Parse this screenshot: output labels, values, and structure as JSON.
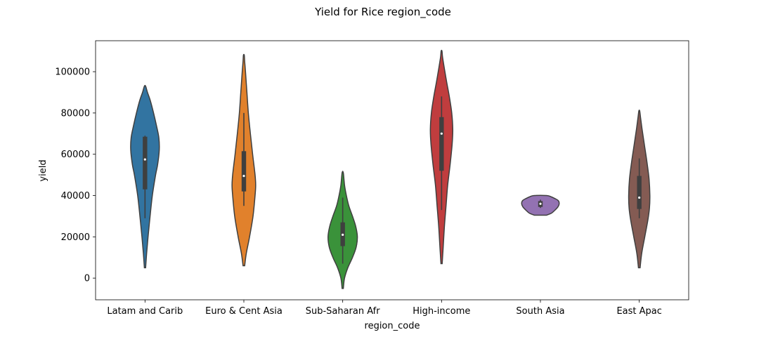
{
  "chart_data": {
    "type": "violin",
    "title": "Yield for Rice region_code",
    "xlabel": "region_code",
    "ylabel": "yield",
    "ylim": [
      -10500,
      115000
    ],
    "yticks": [
      0,
      20000,
      40000,
      60000,
      80000,
      100000
    ],
    "ytick_labels": [
      "0",
      "20000",
      "40000",
      "60000",
      "80000",
      "100000"
    ],
    "grid": false,
    "categories": [
      "Latam and Carib",
      "Euro & Cent Asia",
      "Sub-Saharan Afr",
      "High-income",
      "South Asia",
      "East Apac"
    ],
    "series": [
      {
        "category": "Latam and Carib",
        "color": "#3274a1",
        "min": 5000,
        "max": 93000,
        "whisker_low": 29000,
        "q1": 43000,
        "median": 57500,
        "q3": 68500,
        "whisker_high": 69000,
        "density": [
          [
            5000,
            0.03
          ],
          [
            12000,
            0.08
          ],
          [
            20000,
            0.15
          ],
          [
            30000,
            0.25
          ],
          [
            40000,
            0.36
          ],
          [
            50000,
            0.52
          ],
          [
            55000,
            0.62
          ],
          [
            62000,
            0.7
          ],
          [
            68000,
            0.68
          ],
          [
            74000,
            0.56
          ],
          [
            80000,
            0.42
          ],
          [
            86000,
            0.26
          ],
          [
            90000,
            0.12
          ],
          [
            93000,
            0.03
          ]
        ]
      },
      {
        "category": "Euro & Cent Asia",
        "color": "#e1812c",
        "min": 6000,
        "max": 108000,
        "whisker_low": 35000,
        "q1": 42000,
        "median": 49500,
        "q3": 61500,
        "whisker_high": 80000,
        "density": [
          [
            6000,
            0.04
          ],
          [
            12000,
            0.12
          ],
          [
            20000,
            0.28
          ],
          [
            30000,
            0.45
          ],
          [
            40000,
            0.55
          ],
          [
            45000,
            0.58
          ],
          [
            50000,
            0.55
          ],
          [
            60000,
            0.43
          ],
          [
            70000,
            0.32
          ],
          [
            80000,
            0.22
          ],
          [
            90000,
            0.15
          ],
          [
            100000,
            0.08
          ],
          [
            105000,
            0.04
          ],
          [
            108000,
            0.02
          ]
        ]
      },
      {
        "category": "Sub-Saharan Afr",
        "color": "#3a923a",
        "min": -5000,
        "max": 51000,
        "whisker_low": 7000,
        "q1": 15500,
        "median": 21000,
        "q3": 27000,
        "whisker_high": 39000,
        "density": [
          [
            -5000,
            0.03
          ],
          [
            0,
            0.09
          ],
          [
            5000,
            0.25
          ],
          [
            10000,
            0.48
          ],
          [
            15000,
            0.66
          ],
          [
            20000,
            0.72
          ],
          [
            25000,
            0.64
          ],
          [
            30000,
            0.48
          ],
          [
            35000,
            0.3
          ],
          [
            40000,
            0.18
          ],
          [
            45000,
            0.09
          ],
          [
            51000,
            0.03
          ]
        ]
      },
      {
        "category": "High-income",
        "color": "#c03d3e",
        "min": 7000,
        "max": 110000,
        "whisker_low": 33000,
        "q1": 52000,
        "median": 70000,
        "q3": 78000,
        "whisker_high": 88000,
        "density": [
          [
            7000,
            0.03
          ],
          [
            15000,
            0.08
          ],
          [
            25000,
            0.14
          ],
          [
            35000,
            0.22
          ],
          [
            45000,
            0.3
          ],
          [
            55000,
            0.42
          ],
          [
            65000,
            0.52
          ],
          [
            72000,
            0.55
          ],
          [
            80000,
            0.5
          ],
          [
            88000,
            0.38
          ],
          [
            95000,
            0.25
          ],
          [
            102000,
            0.13
          ],
          [
            107000,
            0.05
          ],
          [
            110000,
            0.02
          ]
        ]
      },
      {
        "category": "South Asia",
        "color": "#9372b2",
        "min": 30500,
        "max": 40000,
        "whisker_low": 34000,
        "q1": 34500,
        "median": 36000,
        "q3": 37300,
        "whisker_high": 38000,
        "density": [
          [
            30500,
            0.3
          ],
          [
            31500,
            0.55
          ],
          [
            33000,
            0.72
          ],
          [
            34500,
            0.86
          ],
          [
            36000,
            0.92
          ],
          [
            37500,
            0.88
          ],
          [
            38500,
            0.72
          ],
          [
            39500,
            0.5
          ],
          [
            40000,
            0.3
          ]
        ]
      },
      {
        "category": "East Apac",
        "color": "#845b53",
        "min": 5000,
        "max": 81000,
        "whisker_low": 29000,
        "q1": 33500,
        "median": 39000,
        "q3": 49500,
        "whisker_high": 58000,
        "density": [
          [
            5000,
            0.04
          ],
          [
            12000,
            0.12
          ],
          [
            20000,
            0.27
          ],
          [
            28000,
            0.42
          ],
          [
            34000,
            0.5
          ],
          [
            40000,
            0.52
          ],
          [
            48000,
            0.48
          ],
          [
            56000,
            0.38
          ],
          [
            64000,
            0.26
          ],
          [
            72000,
            0.14
          ],
          [
            78000,
            0.06
          ],
          [
            81000,
            0.02
          ]
        ]
      }
    ]
  }
}
